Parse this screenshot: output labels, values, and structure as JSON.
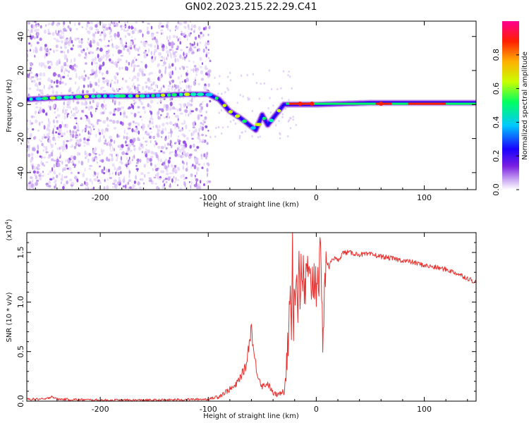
{
  "title": "GN02.2023.215.22.29.C41",
  "colors": {
    "snr_line": "#e8312f",
    "axis": "#000000",
    "background": "#ffffff"
  },
  "chart_data": [
    {
      "type": "heatmap",
      "panel": "spectrogram",
      "xlabel": "Height of straight line (km)",
      "ylabel": "Frequency (Hz)",
      "xlim": [
        -268,
        148
      ],
      "ylim": [
        -50,
        49
      ],
      "xticks": [
        -200,
        -100,
        0,
        100
      ],
      "xtick_labels": [
        "-200",
        "-100",
        "0",
        "100"
      ],
      "yticks": [
        -40,
        -20,
        0,
        20,
        40
      ],
      "ytick_labels": [
        "-40",
        "-20",
        "0",
        "20",
        "40"
      ],
      "ridge": {
        "x": [
          -268,
          -240,
          -200,
          -160,
          -120,
          -100,
          -90,
          -80,
          -70,
          -62,
          -56,
          -50,
          -45,
          -40,
          -30,
          -20,
          0,
          50,
          100,
          148
        ],
        "y": [
          3,
          4,
          5,
          5,
          6,
          6,
          3,
          -4,
          -8,
          -12,
          -15,
          -6,
          -12,
          -8,
          0,
          0,
          0,
          1,
          1,
          1
        ]
      },
      "colorbar": {
        "label": "Normalized spectral amplitude",
        "range": [
          0.0,
          1.0
        ],
        "ticks": [
          0.0,
          0.2,
          0.4,
          0.6,
          0.8
        ],
        "tick_labels": [
          "0.0",
          "0.2",
          "0.4",
          "0.6",
          "0.8"
        ],
        "colormap": [
          "#ffffff",
          "#c9a6f2",
          "#7a1fe0",
          "#1a00ff",
          "#00c8ff",
          "#00ff60",
          "#c8ff00",
          "#ffb000",
          "#ff2000",
          "#ff0090"
        ]
      }
    },
    {
      "type": "line",
      "panel": "snr",
      "xlabel": "Height of straight line (km)",
      "ylabel": "SNR (10 * v/v)",
      "y_multiplier": "(x10",
      "y_multiplier_exp": "4",
      "y_multiplier_close": ")",
      "xlim": [
        -268,
        148
      ],
      "ylim": [
        0,
        1.7
      ],
      "xticks": [
        -200,
        -100,
        0,
        100
      ],
      "xtick_labels": [
        "-200",
        "-100",
        "0",
        "100"
      ],
      "yticks": [
        0.0,
        0.5,
        1.0,
        1.5
      ],
      "ytick_labels": [
        "0.0",
        "0.5",
        "1.0",
        "1.5"
      ],
      "series": [
        {
          "x": [
            -268,
            -250,
            -245,
            -240,
            -200,
            -150,
            -100,
            -90,
            -80,
            -75,
            -70,
            -65,
            -62,
            -60,
            -58,
            -55,
            -52,
            -50,
            -45,
            -40,
            -35,
            -30,
            -28,
            -26,
            -25,
            -24,
            -23,
            -22,
            -21,
            -20,
            -19,
            -18,
            -17,
            -16,
            -15,
            -14,
            -13,
            -12,
            -11,
            -10,
            -8,
            -6,
            -4,
            -2,
            0,
            2,
            4,
            6,
            8,
            10,
            12,
            15,
            20,
            25,
            30,
            40,
            50,
            60,
            70,
            80,
            90,
            100,
            110,
            120,
            130,
            140,
            148
          ],
          "y": [
            0.02,
            0.02,
            0.05,
            0.02,
            0.01,
            0.01,
            0.02,
            0.05,
            0.12,
            0.15,
            0.25,
            0.35,
            0.6,
            0.75,
            0.5,
            0.3,
            0.2,
            0.15,
            0.18,
            0.08,
            0.06,
            0.12,
            0.3,
            0.6,
            0.9,
            1.2,
            0.8,
            1.55,
            0.7,
            1.4,
            1.0,
            1.3,
            0.8,
            1.7,
            1.1,
            1.2,
            1.0,
            1.35,
            1.05,
            1.15,
            1.25,
            1.1,
            1.3,
            1.2,
            1.25,
            1.35,
            1.3,
            0.65,
            1.3,
            1.4,
            1.35,
            1.45,
            1.42,
            1.5,
            1.5,
            1.48,
            1.48,
            1.46,
            1.44,
            1.42,
            1.4,
            1.37,
            1.35,
            1.33,
            1.29,
            1.24,
            1.2
          ]
        }
      ]
    }
  ]
}
